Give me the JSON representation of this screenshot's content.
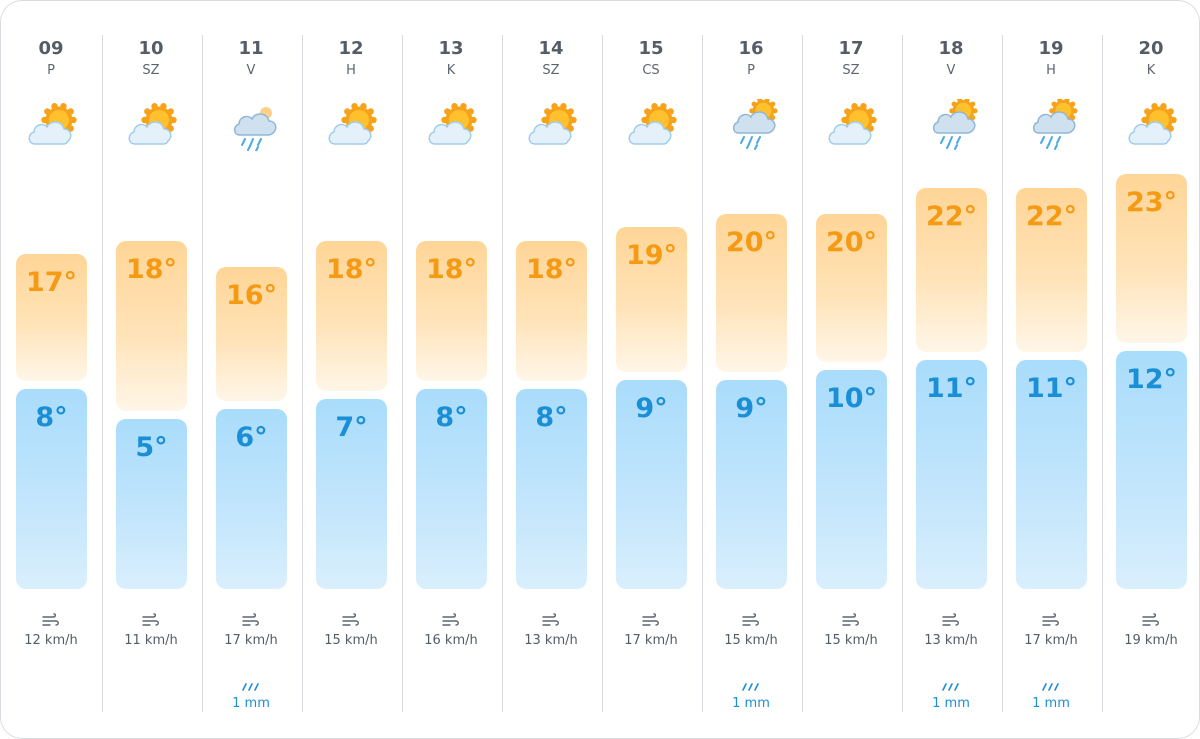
{
  "forecast": {
    "days": [
      {
        "date": "09",
        "dow": "P",
        "icon": "partly-cloudy-icon",
        "high": "17°",
        "low": "8°",
        "high_value": 17,
        "low_value": 8,
        "wind": "12 km/h",
        "rain": ""
      },
      {
        "date": "10",
        "dow": "SZ",
        "icon": "partly-cloudy-icon",
        "high": "18°",
        "low": "5°",
        "high_value": 18,
        "low_value": 5,
        "wind": "11 km/h",
        "rain": ""
      },
      {
        "date": "11",
        "dow": "V",
        "icon": "rain-cloud-icon",
        "high": "16°",
        "low": "6°",
        "high_value": 16,
        "low_value": 6,
        "wind": "17 km/h",
        "rain": "1 mm"
      },
      {
        "date": "12",
        "dow": "H",
        "icon": "partly-cloudy-icon",
        "high": "18°",
        "low": "7°",
        "high_value": 18,
        "low_value": 7,
        "wind": "15 km/h",
        "rain": ""
      },
      {
        "date": "13",
        "dow": "K",
        "icon": "partly-cloudy-icon",
        "high": "18°",
        "low": "8°",
        "high_value": 18,
        "low_value": 8,
        "wind": "16 km/h",
        "rain": ""
      },
      {
        "date": "14",
        "dow": "SZ",
        "icon": "partly-cloudy-icon",
        "high": "18°",
        "low": "8°",
        "high_value": 18,
        "low_value": 8,
        "wind": "13 km/h",
        "rain": ""
      },
      {
        "date": "15",
        "dow": "CS",
        "icon": "partly-cloudy-icon",
        "high": "19°",
        "low": "9°",
        "high_value": 19,
        "low_value": 9,
        "wind": "17 km/h",
        "rain": ""
      },
      {
        "date": "16",
        "dow": "P",
        "icon": "sun-rain-icon",
        "high": "20°",
        "low": "9°",
        "high_value": 20,
        "low_value": 9,
        "wind": "15 km/h",
        "rain": "1 mm"
      },
      {
        "date": "17",
        "dow": "SZ",
        "icon": "partly-cloudy-icon",
        "high": "20°",
        "low": "10°",
        "high_value": 20,
        "low_value": 10,
        "wind": "15 km/h",
        "rain": ""
      },
      {
        "date": "18",
        "dow": "V",
        "icon": "sun-rain-icon",
        "high": "22°",
        "low": "11°",
        "high_value": 22,
        "low_value": 11,
        "wind": "13 km/h",
        "rain": "1 mm"
      },
      {
        "date": "19",
        "dow": "H",
        "icon": "sun-rain-icon",
        "high": "22°",
        "low": "11°",
        "high_value": 22,
        "low_value": 11,
        "wind": "17 km/h",
        "rain": "1 mm"
      },
      {
        "date": "20",
        "dow": "K",
        "icon": "partly-cloudy-icon",
        "high": "23°",
        "low": "12°",
        "high_value": 23,
        "low_value": 12,
        "wind": "19 km/h",
        "rain": ""
      }
    ]
  },
  "colors": {
    "high_text": "#f59a14",
    "low_text": "#1b8fd6",
    "high_bar": "#ffd597",
    "low_bar": "#a9dcfb",
    "rain_text": "#1b8fd6",
    "text": "#545c66",
    "separator": "#d6dadf"
  }
}
